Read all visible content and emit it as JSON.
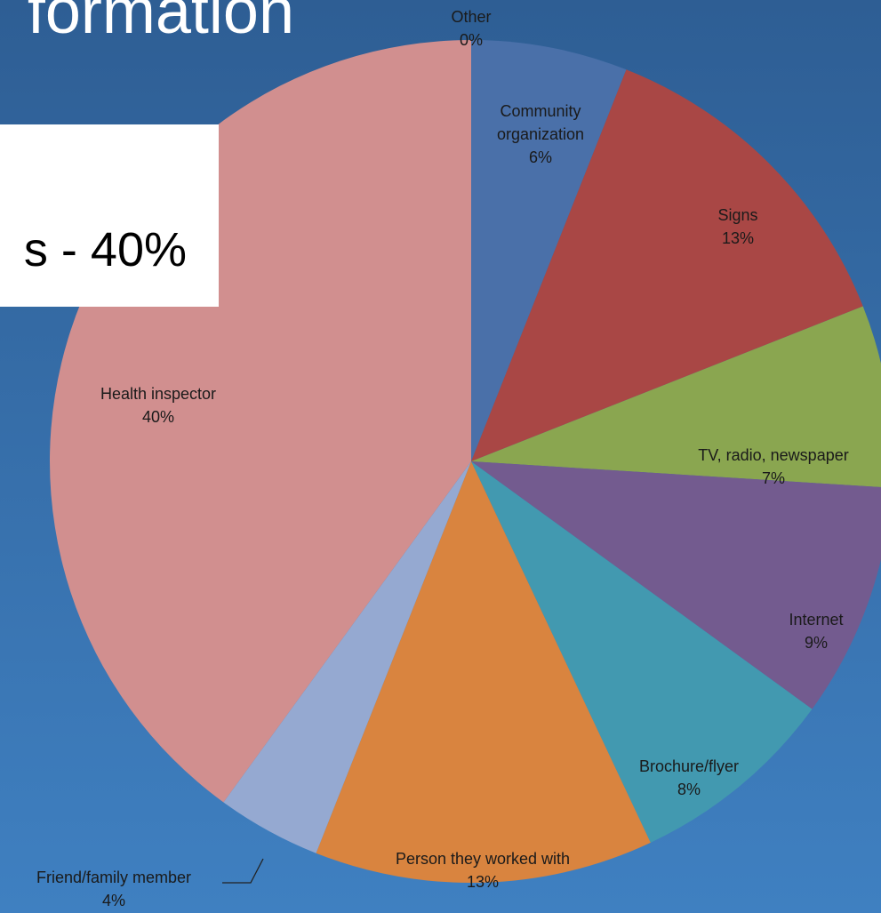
{
  "chart_data": {
    "type": "pie",
    "title": "formation",
    "annotation": "s - 40%",
    "categories": [
      "Other",
      "Community organization",
      "Signs",
      "TV, radio, newspaper",
      "Internet",
      "Brochure/flyer",
      "Person they worked with",
      "Friend/family member",
      "Health inspector"
    ],
    "values": [
      0,
      6,
      13,
      7,
      9,
      8,
      13,
      4,
      40
    ],
    "value_labels": [
      "0%",
      "6%",
      "13%",
      "7%",
      "9%",
      "8%",
      "13%",
      "4%",
      "40%"
    ],
    "colors": [
      "#4a6fa8",
      "#4a70a9",
      "#a94745",
      "#8aa650",
      "#735b8f",
      "#4299b0",
      "#d9843f",
      "#95a9d1",
      "#d18f8f"
    ]
  }
}
